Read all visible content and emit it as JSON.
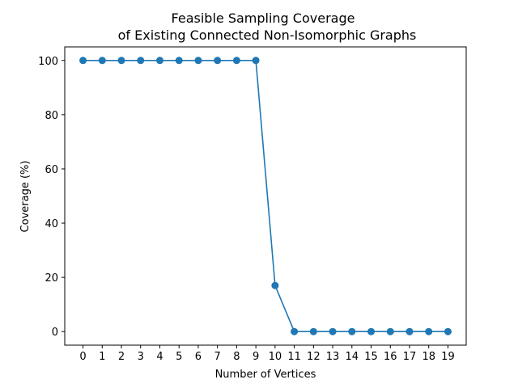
{
  "chart_data": {
    "type": "line",
    "title_line1": "Feasible Sampling Coverage",
    "title_line2": "of Existing Connected Non-Isomorphic Graphs",
    "xlabel": "Number of Vertices",
    "ylabel": "Coverage (%)",
    "x": [
      0,
      1,
      2,
      3,
      4,
      5,
      6,
      7,
      8,
      9,
      10,
      11,
      12,
      13,
      14,
      15,
      16,
      17,
      18,
      19
    ],
    "x_tick_labels": [
      "0",
      "1",
      "2",
      "3",
      "4",
      "5",
      "6",
      "7",
      "8",
      "9",
      "10",
      "11",
      "12",
      "13",
      "14",
      "15",
      "16",
      "17",
      "18",
      "19"
    ],
    "y_ticks": [
      0,
      20,
      40,
      60,
      80,
      100
    ],
    "y_tick_labels": [
      "0",
      "20",
      "40",
      "60",
      "80",
      "100"
    ],
    "xlim": [
      -0.95,
      19.95
    ],
    "ylim": [
      -5,
      105
    ],
    "series": [
      {
        "values": [
          100,
          100,
          100,
          100,
          100,
          100,
          100,
          100,
          100,
          100,
          17,
          0,
          0,
          0,
          0,
          0,
          0,
          0,
          0,
          0
        ],
        "color": "#1f77b4"
      }
    ],
    "grid": false,
    "legend": false
  }
}
